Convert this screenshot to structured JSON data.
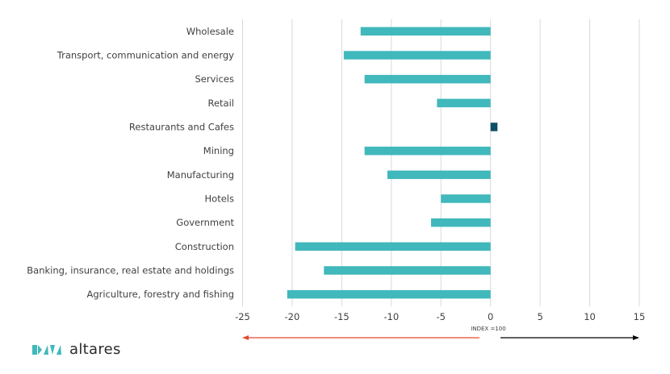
{
  "chart_data": {
    "type": "bar",
    "orientation": "horizontal",
    "title": "",
    "xlabel": "",
    "ylabel": "",
    "categories": [
      "Wholesale",
      "Transport, communication and energy",
      "Services",
      "Retail",
      "Restaurants and Cafes",
      "Mining",
      "Manufacturing",
      "Hotels",
      "Government",
      "Construction",
      "Banking, insurance, real estate and holdings",
      "Agriculture, forestry and fishing"
    ],
    "values": [
      -13.1,
      -14.8,
      -12.7,
      -5.4,
      0.7,
      -12.7,
      -10.4,
      -5.0,
      -6.0,
      -19.7,
      -16.8,
      -20.5
    ],
    "xlim": [
      -25,
      15
    ],
    "xticks": [
      -25,
      -20,
      -15,
      -10,
      -5,
      0,
      5,
      10,
      15
    ],
    "xtick_labels": [
      "-25",
      "-20",
      "-15",
      "-10",
      "-5",
      "0",
      "5",
      "10",
      "15"
    ],
    "grid": true,
    "legend": "none",
    "colors": {
      "negative": "#40b8bc",
      "positive": "#0d4f66",
      "grid": "#d9d9d9",
      "left_arrow": "#e8492f",
      "right_arrow": "#000000"
    },
    "annotations": {
      "index_label": "INDEX =100"
    }
  },
  "logo": {
    "text": "altares",
    "mark_color": "#40b8bc"
  }
}
